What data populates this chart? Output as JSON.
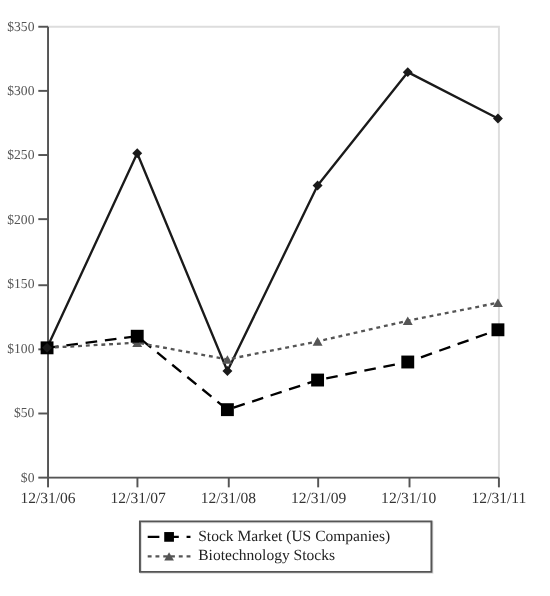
{
  "chart_data": {
    "type": "line",
    "categories": [
      "12/31/06",
      "12/31/07",
      "12/31/08",
      "12/31/09",
      "12/31/10",
      "12/31/11"
    ],
    "series": [
      {
        "color": "#1a1a1a",
        "marker": "diamond",
        "line_style": "solid",
        "values": [
          100,
          251,
          82,
          226,
          314,
          278
        ]
      },
      {
        "name": "Stock Market (US Companies)",
        "color": "#000000",
        "marker": "square",
        "line_style": "dashed",
        "values": [
          100,
          109,
          52,
          75,
          89,
          114
        ]
      },
      {
        "name": "Biotechnology Stocks",
        "color": "#555555",
        "marker": "triangle",
        "line_style": "dotted",
        "values": [
          100,
          104,
          91,
          105,
          121,
          135
        ]
      }
    ],
    "ylim": [
      0,
      350
    ],
    "yticks": [
      {
        "value": 0,
        "label": "$0"
      },
      {
        "value": 50,
        "label": "$50"
      },
      {
        "value": 100,
        "label": "$100"
      },
      {
        "value": 150,
        "label": "$150"
      },
      {
        "value": 200,
        "label": "$200"
      },
      {
        "value": 250,
        "label": "$250"
      },
      {
        "value": 300,
        "label": "$300"
      },
      {
        "value": 350,
        "label": "$350"
      }
    ],
    "grid": false,
    "legend": "bottom"
  }
}
